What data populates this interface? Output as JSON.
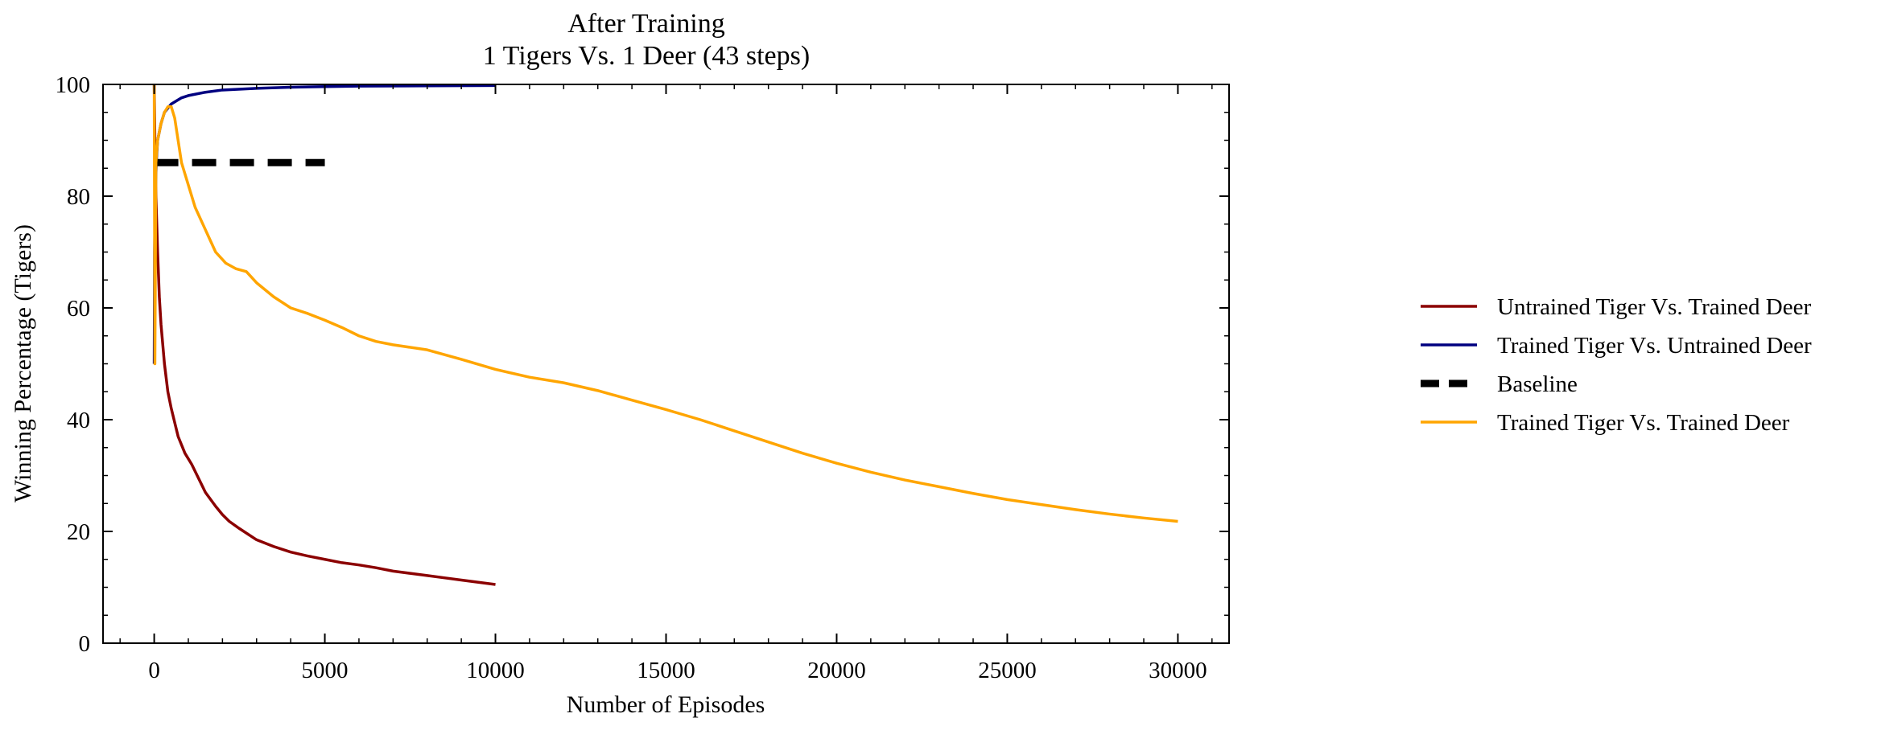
{
  "chart_data": {
    "type": "line",
    "title": "After Training",
    "subtitle": "1 Tigers Vs. 1 Deer (43 steps)",
    "xlabel": "Number of Episodes",
    "ylabel": "Winning Percentage (Tigers)",
    "xlim": [
      -1500,
      31500
    ],
    "ylim": [
      0,
      100
    ],
    "xticks": [
      "0",
      "5000",
      "10000",
      "15000",
      "20000",
      "25000",
      "30000"
    ],
    "yticks": [
      "0",
      "20",
      "40",
      "60",
      "80",
      "100"
    ],
    "grid": false,
    "legend_position": "right-outside",
    "series": [
      {
        "name": "Untrained Tiger Vs. Trained Deer",
        "color": "#8b0000",
        "dashed": false,
        "points": [
          [
            0,
            100
          ],
          [
            20,
            90
          ],
          [
            50,
            80
          ],
          [
            100,
            70
          ],
          [
            150,
            62
          ],
          [
            200,
            57
          ],
          [
            300,
            50
          ],
          [
            400,
            45
          ],
          [
            500,
            42
          ],
          [
            700,
            37
          ],
          [
            900,
            34
          ],
          [
            1100,
            32
          ],
          [
            1300,
            29.5
          ],
          [
            1500,
            27
          ],
          [
            1800,
            24.5
          ],
          [
            2000,
            23
          ],
          [
            2200,
            21.8
          ],
          [
            2500,
            20.5
          ],
          [
            3000,
            18.5
          ],
          [
            3500,
            17.3
          ],
          [
            4000,
            16.3
          ],
          [
            4500,
            15.6
          ],
          [
            5000,
            15
          ],
          [
            5500,
            14.4
          ],
          [
            6000,
            14
          ],
          [
            6500,
            13.5
          ],
          [
            7000,
            12.9
          ],
          [
            7500,
            12.5
          ],
          [
            8000,
            12.1
          ],
          [
            8500,
            11.7
          ],
          [
            9000,
            11.3
          ],
          [
            9500,
            10.9
          ],
          [
            10000,
            10.5
          ]
        ]
      },
      {
        "name": "Trained Tiger Vs. Untrained Deer",
        "color": "#000080",
        "dashed": false,
        "points": [
          [
            0,
            50
          ],
          [
            10,
            70
          ],
          [
            30,
            80
          ],
          [
            60,
            86
          ],
          [
            100,
            90
          ],
          [
            200,
            93
          ],
          [
            300,
            95
          ],
          [
            500,
            96.5
          ],
          [
            800,
            97.6
          ],
          [
            1000,
            98
          ],
          [
            1500,
            98.6
          ],
          [
            2000,
            99
          ],
          [
            3000,
            99.3
          ],
          [
            4000,
            99.5
          ],
          [
            5000,
            99.6
          ],
          [
            6000,
            99.7
          ],
          [
            8000,
            99.75
          ],
          [
            10000,
            99.8
          ]
        ]
      },
      {
        "name": "Baseline",
        "color": "#000000",
        "dashed": true,
        "points": [
          [
            0,
            86
          ],
          [
            5000,
            86
          ]
        ]
      },
      {
        "name": "Trained Tiger Vs. Trained Deer",
        "color": "#ffa500",
        "dashed": false,
        "points": [
          [
            0,
            100
          ],
          [
            20,
            50
          ],
          [
            50,
            86
          ],
          [
            100,
            90
          ],
          [
            200,
            93
          ],
          [
            300,
            95
          ],
          [
            400,
            96
          ],
          [
            500,
            96
          ],
          [
            600,
            94
          ],
          [
            700,
            90
          ],
          [
            800,
            86
          ],
          [
            1000,
            82
          ],
          [
            1200,
            78
          ],
          [
            1500,
            74
          ],
          [
            1800,
            70
          ],
          [
            2100,
            68
          ],
          [
            2400,
            67
          ],
          [
            2700,
            66.5
          ],
          [
            3000,
            64.5
          ],
          [
            3500,
            62
          ],
          [
            4000,
            60
          ],
          [
            4500,
            59
          ],
          [
            5000,
            57.8
          ],
          [
            5500,
            56.5
          ],
          [
            6000,
            55
          ],
          [
            6500,
            54
          ],
          [
            7000,
            53.4
          ],
          [
            8000,
            52.5
          ],
          [
            9000,
            50.8
          ],
          [
            10000,
            49
          ],
          [
            11000,
            47.6
          ],
          [
            12000,
            46.6
          ],
          [
            13000,
            45.2
          ],
          [
            14000,
            43.5
          ],
          [
            15000,
            41.8
          ],
          [
            16000,
            40
          ],
          [
            17000,
            38
          ],
          [
            18000,
            36
          ],
          [
            19000,
            34
          ],
          [
            20000,
            32.2
          ],
          [
            21000,
            30.6
          ],
          [
            22000,
            29.2
          ],
          [
            23000,
            28
          ],
          [
            24000,
            26.8
          ],
          [
            25000,
            25.7
          ],
          [
            26000,
            24.8
          ],
          [
            27000,
            23.9
          ],
          [
            28000,
            23.1
          ],
          [
            29000,
            22.4
          ],
          [
            30000,
            21.8
          ]
        ]
      }
    ]
  }
}
